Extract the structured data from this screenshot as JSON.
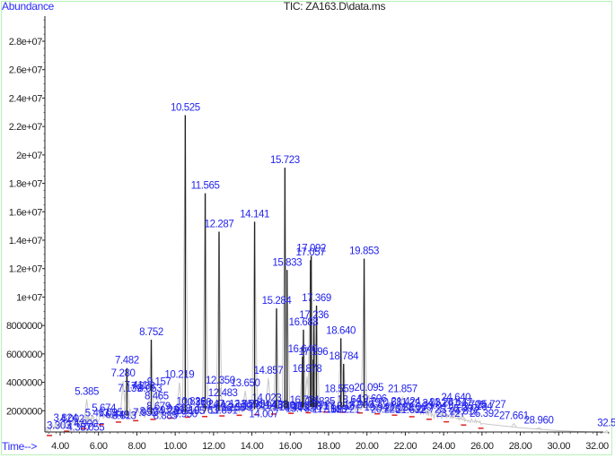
{
  "header": {
    "y_axis_title": "Abundance",
    "title": "TIC: ZA163.D\\data.ms",
    "x_axis_title": "Time-->"
  },
  "colors": {
    "frame": "#b8f0b8",
    "label_blue": "#2323ee",
    "axis": "#222222",
    "trace": "#c8c8c8",
    "peak_line": "#222222",
    "baseline_marker": "#dd2222"
  },
  "chart_data": {
    "type": "line",
    "title": "TIC: ZA163.D\\data.ms",
    "xlabel": "Time-->",
    "ylabel": "Abundance",
    "xlim": [
      3.2,
      32.7
    ],
    "ylim": [
      0,
      29500000
    ],
    "grid": false,
    "legend": null,
    "y_ticks": [
      "2000000",
      "4000000",
      "6000000",
      "8000000",
      "1e+07",
      "1.2e+07",
      "1.4e+07",
      "1.6e+07",
      "1.8e+07",
      "2e+07",
      "2.2e+07",
      "2.4e+07",
      "2.6e+07",
      "2.8e+07"
    ],
    "y_tick_values": [
      2000000,
      4000000,
      6000000,
      8000000,
      10000000,
      12000000,
      14000000,
      16000000,
      18000000,
      20000000,
      22000000,
      24000000,
      26000000,
      28000000
    ],
    "x_ticks": [
      "4.00",
      "6.00",
      "8.00",
      "10.00",
      "12.00",
      "14.00",
      "16.00",
      "18.00",
      "20.00",
      "22.00",
      "24.00",
      "26.00",
      "28.00",
      "30.00",
      "32.00"
    ],
    "x_tick_values": [
      4,
      6,
      8,
      10,
      12,
      14,
      16,
      18,
      20,
      22,
      24,
      26,
      28,
      30,
      32
    ],
    "peaks": [
      {
        "rt": 10.525,
        "label": "10.525",
        "abundance": 22800000
      },
      {
        "rt": 15.723,
        "label": "15.723",
        "abundance": 19100000
      },
      {
        "rt": 11.565,
        "label": "11.565",
        "abundance": 17300000
      },
      {
        "rt": 14.141,
        "label": "14.141",
        "abundance": 15300000
      },
      {
        "rt": 12.287,
        "label": "12.287",
        "abundance": 14600000
      },
      {
        "rt": 17.092,
        "label": "17.092",
        "abundance": 12900000
      },
      {
        "rt": 17.057,
        "label": "17.057",
        "abundance": 12600000
      },
      {
        "rt": 19.853,
        "label": "19.853",
        "abundance": 12700000
      },
      {
        "rt": 15.833,
        "label": "15.833",
        "abundance": 11900000
      },
      {
        "rt": 17.369,
        "label": "17.369",
        "abundance": 9400000
      },
      {
        "rt": 15.284,
        "label": "15.284",
        "abundance": 9200000
      },
      {
        "rt": 17.236,
        "label": "17.236",
        "abundance": 8200000
      },
      {
        "rt": 16.688,
        "label": "16.688",
        "abundance": 7700000
      },
      {
        "rt": 18.64,
        "label": "18.640",
        "abundance": 7100000
      },
      {
        "rt": 8.752,
        "label": "8.752",
        "abundance": 7000000
      },
      {
        "rt": 16.64,
        "label": "16.640",
        "abundance": 5800000
      },
      {
        "rt": 17.196,
        "label": "17.196",
        "abundance": 5600000
      },
      {
        "rt": 18.784,
        "label": "18.784",
        "abundance": 5300000
      },
      {
        "rt": 7.482,
        "label": "7.482",
        "abundance": 5000000
      },
      {
        "rt": 16.878,
        "label": "16.878",
        "abundance": 4400000
      },
      {
        "rt": 14.857,
        "label": "14.857",
        "abundance": 4300000
      },
      {
        "rt": 7.28,
        "label": "7.280",
        "abundance": 4100000
      },
      {
        "rt": 10.219,
        "label": "10.219",
        "abundance": 4000000
      },
      {
        "rt": 12.35,
        "label": "12.350",
        "abundance": 3600000
      },
      {
        "rt": 9.157,
        "label": "9.157",
        "abundance": 3500000
      },
      {
        "rt": 13.65,
        "label": "13.650",
        "abundance": 3400000
      },
      {
        "rt": 18.559,
        "label": "18.559",
        "abundance": 3000000
      },
      {
        "rt": 20.095,
        "label": "20.095",
        "abundance": 3100000
      },
      {
        "rt": 21.857,
        "label": "21.857",
        "abundance": 3000000
      },
      {
        "rt": 5.385,
        "label": "5.385",
        "abundance": 2800000
      },
      {
        "rt": 12.483,
        "label": "12.483",
        "abundance": 2700000
      },
      {
        "rt": 24.64,
        "label": "24.640",
        "abundance": 2400000
      },
      {
        "rt": 10.826,
        "label": "10.826",
        "abundance": 2100000
      },
      {
        "rt": 16.734,
        "label": "16.734",
        "abundance": 2200000
      },
      {
        "rt": 25.007,
        "label": "25.007",
        "abundance": 1600000
      },
      {
        "rt": 27.661,
        "label": "27.661",
        "abundance": 1100000
      },
      {
        "rt": 28.96,
        "label": "28.960",
        "abundance": 800000
      },
      {
        "rt": 32.5,
        "label": "32.5",
        "abundance": 600000
      }
    ],
    "baseline": [
      {
        "rt": 3.2,
        "abundance": 600000
      },
      {
        "rt": 4.0,
        "abundance": 900000
      },
      {
        "rt": 5.0,
        "abundance": 1100000
      },
      {
        "rt": 6.0,
        "abundance": 1400000
      },
      {
        "rt": 7.0,
        "abundance": 1600000
      },
      {
        "rt": 8.0,
        "abundance": 1700000
      },
      {
        "rt": 10.0,
        "abundance": 1900000
      },
      {
        "rt": 12.0,
        "abundance": 2000000
      },
      {
        "rt": 14.0,
        "abundance": 2100000
      },
      {
        "rt": 16.0,
        "abundance": 2200000
      },
      {
        "rt": 18.0,
        "abundance": 2300000
      },
      {
        "rt": 20.0,
        "abundance": 2200000
      },
      {
        "rt": 22.0,
        "abundance": 2000000
      },
      {
        "rt": 24.0,
        "abundance": 1600000
      },
      {
        "rt": 26.0,
        "abundance": 1100000
      },
      {
        "rt": 28.0,
        "abundance": 800000
      },
      {
        "rt": 30.0,
        "abundance": 600000
      },
      {
        "rt": 32.7,
        "abundance": 450000
      }
    ],
    "crowded_label_clusters": [
      {
        "rt_start": 3.3,
        "rt_end": 5.3,
        "abundance": 1300000
      },
      {
        "rt_start": 5.3,
        "rt_end": 7.0,
        "abundance": 2100000
      },
      {
        "rt_start": 7.0,
        "rt_end": 8.4,
        "abundance": 3400000
      },
      {
        "rt_start": 7.8,
        "rt_end": 10.0,
        "abundance": 1900000
      },
      {
        "rt_start": 10.0,
        "rt_end": 14.0,
        "abundance": 2200000
      },
      {
        "rt_start": 14.0,
        "rt_end": 17.4,
        "abundance": 2500000
      },
      {
        "rt_start": 17.4,
        "rt_end": 21.5,
        "abundance": 2500000
      },
      {
        "rt_start": 21.5,
        "rt_end": 26.0,
        "abundance": 2200000
      }
    ]
  }
}
